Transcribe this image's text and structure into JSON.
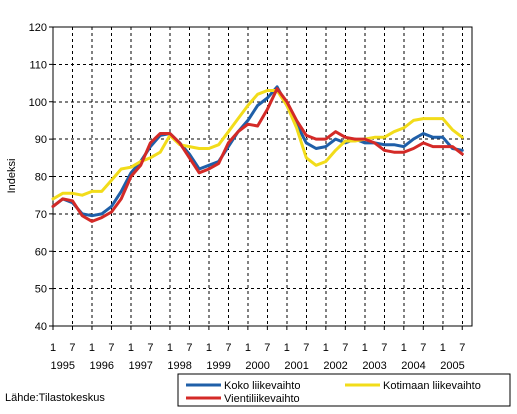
{
  "chart_data": {
    "type": "line",
    "ylabel": "Indeksi",
    "xlabel": "",
    "ylim": [
      40,
      120
    ],
    "yticks": [
      40,
      50,
      60,
      70,
      80,
      90,
      100,
      110,
      120
    ],
    "xlim": [
      1995.0,
      2005.75
    ],
    "x_month_ticks": [
      "1",
      "7"
    ],
    "x_years": [
      "1995",
      "1996",
      "1997",
      "1998",
      "1999",
      "2000",
      "2001",
      "2002",
      "2003",
      "2004",
      "2005"
    ],
    "grid": "dashed vertical and horizontal",
    "legend_position": "bottom-right",
    "x": [
      1995.0,
      1995.25,
      1995.5,
      1995.75,
      1996.0,
      1996.25,
      1996.5,
      1996.75,
      1997.0,
      1997.25,
      1997.5,
      1997.75,
      1998.0,
      1998.25,
      1998.5,
      1998.75,
      1999.0,
      1999.25,
      1999.5,
      1999.75,
      2000.0,
      2000.25,
      2000.5,
      2000.75,
      2001.0,
      2001.25,
      2001.5,
      2001.75,
      2002.0,
      2002.25,
      2002.5,
      2002.75,
      2003.0,
      2003.25,
      2003.5,
      2003.75,
      2004.0,
      2004.25,
      2004.5,
      2004.75,
      2005.0,
      2005.25,
      2005.5
    ],
    "series": [
      {
        "name": "Koko liikevaihto",
        "color": "#1f5fa8",
        "values": [
          72,
          74,
          73,
          70,
          69.5,
          70,
          72,
          76,
          81,
          84,
          88,
          91,
          91.5,
          89,
          86,
          82,
          83,
          84,
          88,
          92,
          95,
          99,
          101,
          104,
          99,
          94,
          89,
          87.5,
          88,
          90,
          89,
          90,
          89,
          89,
          88.5,
          88.5,
          88,
          90,
          91.5,
          90.5,
          90.5,
          87.5,
          87
        ]
      },
      {
        "name": "Vientiliikevaihto",
        "color": "#d42a27",
        "values": [
          72,
          74,
          73.5,
          69.5,
          68,
          69,
          70.5,
          74,
          80,
          83,
          89,
          91.5,
          91.5,
          89,
          85,
          81,
          82,
          83.5,
          89,
          92,
          94,
          93.5,
          98,
          103.5,
          100,
          95,
          91,
          90,
          90,
          92,
          90.5,
          90,
          90,
          89,
          87,
          86.5,
          86.5,
          87.5,
          89,
          88,
          88,
          88,
          86
        ]
      },
      {
        "name": "Kotimaan liikevaihto",
        "color": "#f2dc1a",
        "values": [
          74,
          75.5,
          75.5,
          75,
          76,
          76,
          79,
          82,
          82.5,
          84,
          85,
          86.5,
          91,
          88.5,
          88,
          87.5,
          87.5,
          88.5,
          92,
          95.5,
          99,
          102,
          103,
          103,
          99,
          93,
          85,
          83,
          84,
          87,
          89.5,
          89.5,
          90,
          90.5,
          90.5,
          92,
          93,
          95,
          95.5,
          95.5,
          95.5,
          92.5,
          90.5
        ]
      }
    ]
  },
  "source_text": "Lähde:Tilastokeskus"
}
